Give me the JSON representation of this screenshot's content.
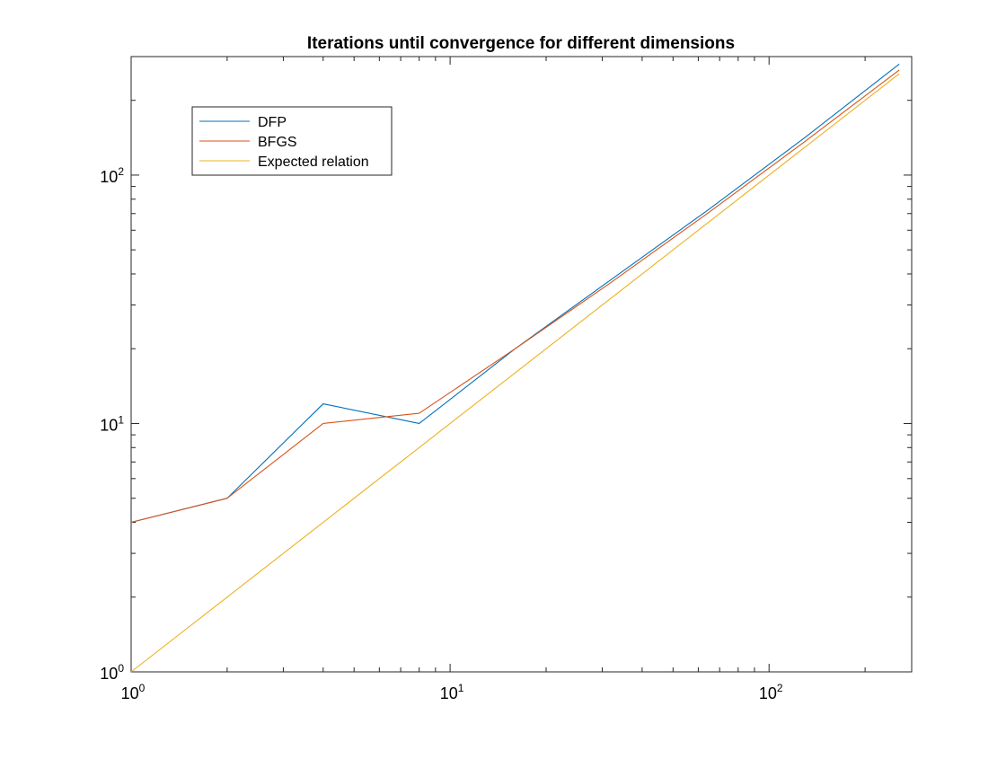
{
  "chart_data": {
    "type": "line",
    "title": "Iterations until convergence for different dimensions",
    "xlabel": "",
    "ylabel": "",
    "xscale": "log",
    "yscale": "log",
    "xlim": [
      1,
      280
    ],
    "ylim": [
      1,
      300
    ],
    "grid": false,
    "legend_position": "top-left",
    "x_ticks": [
      {
        "base": "10",
        "exp": "0",
        "value": 1
      },
      {
        "base": "10",
        "exp": "1",
        "value": 10
      },
      {
        "base": "10",
        "exp": "2",
        "value": 100
      }
    ],
    "y_ticks": [
      {
        "base": "10",
        "exp": "0",
        "value": 1
      },
      {
        "base": "10",
        "exp": "1",
        "value": 10
      },
      {
        "base": "10",
        "exp": "2",
        "value": 100
      }
    ],
    "series": [
      {
        "name": "DFP",
        "color": "#0072BD",
        "x": [
          1,
          2,
          4,
          8,
          16,
          32,
          64,
          128,
          256
        ],
        "values": [
          4,
          5,
          12,
          10,
          20,
          38,
          72,
          140,
          280
        ]
      },
      {
        "name": "BFGS",
        "color": "#D95319",
        "x": [
          1,
          2,
          4,
          8,
          16,
          32,
          64,
          128,
          256
        ],
        "values": [
          4,
          5,
          10,
          11,
          20,
          37,
          70,
          135,
          265
        ]
      },
      {
        "name": "Expected relation",
        "color": "#EDB120",
        "x": [
          1,
          2,
          4,
          8,
          16,
          32,
          64,
          128,
          256
        ],
        "values": [
          1,
          2,
          4,
          8,
          16,
          32,
          64,
          128,
          256
        ]
      }
    ]
  }
}
